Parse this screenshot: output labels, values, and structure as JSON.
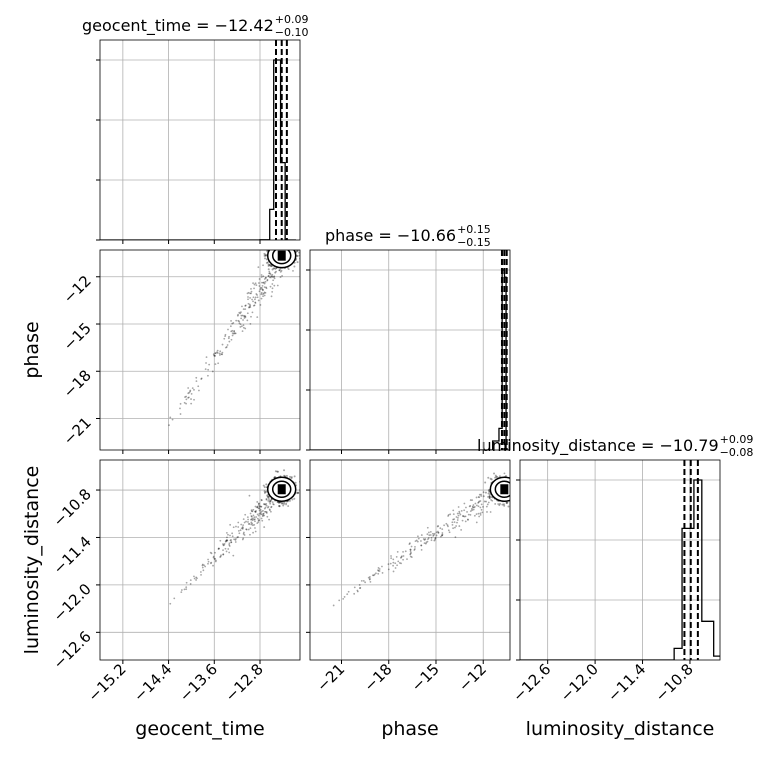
{
  "chart_data": {
    "type": "corner",
    "parameters": [
      "geocent_time",
      "phase",
      "luminosity_distance"
    ],
    "titles": [
      {
        "name": "geocent_time",
        "value": "−12.42",
        "upper": "+0.09",
        "lower": "−0.10"
      },
      {
        "name": "phase",
        "value": "−10.66",
        "upper": "+0.15",
        "lower": "−0.15"
      },
      {
        "name": "luminosity_distance",
        "value": "−10.79",
        "upper": "+0.09",
        "lower": "−0.08"
      }
    ],
    "ranges": {
      "geocent_time": [
        -15.6,
        -12.1
      ],
      "phase": [
        -23.0,
        -10.3
      ],
      "luminosity_distance": [
        -12.95,
        -10.42
      ]
    },
    "ticks": {
      "geocent_time": {
        "values": [
          -15.2,
          -14.4,
          -13.6,
          -12.8
        ],
        "labels": [
          "−15.2",
          "−14.4",
          "−13.6",
          "−12.8"
        ]
      },
      "phase": {
        "values": [
          -21,
          -18,
          -15,
          -12
        ],
        "labels": [
          "−21",
          "−18",
          "−15",
          "−12"
        ]
      },
      "luminosity_distance": {
        "values": [
          -12.6,
          -12.0,
          -11.4,
          -10.8
        ],
        "labels": [
          "−12.6",
          "−12.0",
          "−11.4",
          "−10.8"
        ]
      }
    },
    "histograms": {
      "geocent_time": {
        "bin_edges": [
          -15.6,
          -12.8,
          -12.63,
          -12.56,
          -12.5,
          -12.44,
          -12.36,
          -12.29,
          -12.17
        ],
        "counts": [
          0,
          1,
          170,
          1000,
          1000,
          430,
          0,
          0
        ]
      },
      "phase": {
        "bin_edges": [
          -23.0,
          -11.4,
          -11.0,
          -10.8,
          -10.65,
          -10.55,
          -10.4
        ],
        "counts": [
          0,
          0.05,
          0.12,
          1.0,
          0.96,
          0
        ]
      },
      "luminosity_distance": {
        "bin_edges": [
          -12.95,
          -11.0,
          -10.9,
          -10.75,
          -10.65,
          -10.5,
          -10.42
        ],
        "counts": [
          0,
          0.06,
          0.68,
          0.93,
          0.2,
          0.02
        ]
      }
    },
    "quantiles_dashed": {
      "geocent_time": [
        -12.52,
        -12.42,
        -12.33
      ],
      "phase": [
        -10.81,
        -10.66,
        -10.51
      ],
      "luminosity_distance": [
        -10.87,
        -10.79,
        -10.7
      ]
    },
    "density_centers": {
      "geocent_time_vs_phase": [
        -12.42,
        -10.66
      ],
      "geocent_time_vs_luminosity_distance": [
        -12.42,
        -10.79
      ],
      "phase_vs_luminosity_distance": [
        -10.66,
        -10.79
      ]
    },
    "grid": true
  }
}
